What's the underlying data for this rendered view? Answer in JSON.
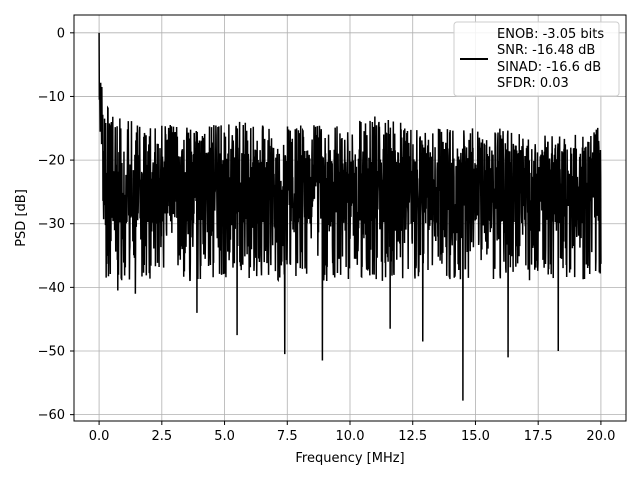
{
  "chart_data": {
    "type": "line",
    "title": "",
    "xlabel": "Frequency [MHz]",
    "ylabel": "PSD [dB]",
    "xlim": [
      -1.0,
      21.0
    ],
    "ylim": [
      -61.0,
      2.8
    ],
    "xticks": [
      0.0,
      2.5,
      5.0,
      7.5,
      10.0,
      12.5,
      15.0,
      17.5,
      20.0
    ],
    "xtick_labels": [
      "0.0",
      "2.5",
      "5.0",
      "7.5",
      "10.0",
      "12.5",
      "15.0",
      "17.5",
      "20.0"
    ],
    "yticks": [
      0,
      -10,
      -20,
      -30,
      -40,
      -50,
      -60
    ],
    "ytick_labels": [
      "0",
      "−10",
      "−20",
      "−30",
      "−40",
      "−50",
      "−60"
    ],
    "grid": true,
    "legend_position": "top-right",
    "legend_lines": [
      "ENOB: -3.05 bits",
      "SNR: -16.48 dB",
      "SINAD: -16.6 dB",
      "SFDR: 0.03"
    ],
    "series": [
      {
        "color": "#000000",
        "x_start": 0.0,
        "x_end": 20.0,
        "peak_at": {
          "x": 0.0,
          "y": 0.0
        },
        "upper_envelope": [
          -11,
          -13,
          -15,
          -14,
          -15,
          -14,
          -14,
          -15,
          -14,
          -14,
          -14,
          -13,
          -14,
          -15,
          -15,
          -15,
          -15,
          -16,
          -16,
          -16,
          -14
        ],
        "typical_band": [
          -33,
          -17
        ],
        "deep_spikes": [
          {
            "x": 0.1,
            "y": -17.5
          },
          {
            "x": 0.3,
            "y": -36.3
          },
          {
            "x": 0.75,
            "y": -40.5
          },
          {
            "x": 1.45,
            "y": -41.0
          },
          {
            "x": 3.9,
            "y": -44.0
          },
          {
            "x": 5.5,
            "y": -47.5
          },
          {
            "x": 7.4,
            "y": -50.5
          },
          {
            "x": 8.9,
            "y": -51.5
          },
          {
            "x": 11.6,
            "y": -46.5
          },
          {
            "x": 12.9,
            "y": -48.5
          },
          {
            "x": 14.5,
            "y": -57.8
          },
          {
            "x": 16.3,
            "y": -51.0
          },
          {
            "x": 18.3,
            "y": -50.0
          }
        ]
      }
    ]
  }
}
